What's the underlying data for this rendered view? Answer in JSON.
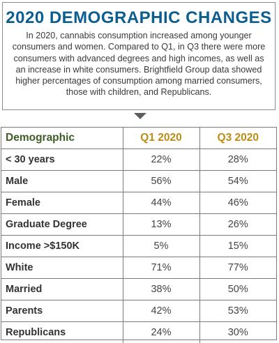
{
  "title": "2020 DEMOGRAPHIC CHANGES",
  "description": "In 2020, cannabis consumption increased among younger consumers and women. Compared to Q1, in Q3 there were more consumers with advanced degrees and high incomes, as well as an increase in white consumers. Brightfield Group data showed higher percentages of consumption among married consumers, those with children, and Republicans.",
  "colors": {
    "title": "#0d5e90",
    "header_demographic": "#3f5c27",
    "header_quarters": "#bf8c12"
  },
  "chart_data": {
    "type": "table",
    "columns": [
      "Demographic",
      "Q1 2020",
      "Q3 2020"
    ],
    "rows": [
      {
        "label": "< 30 years",
        "q1": "22%",
        "q3": "28%"
      },
      {
        "label": "Male",
        "q1": "56%",
        "q3": "54%"
      },
      {
        "label": "Female",
        "q1": "44%",
        "q3": "46%"
      },
      {
        "label": "Graduate Degree",
        "q1": "13%",
        "q3": "26%"
      },
      {
        "label": "Income >$150K",
        "q1": "5%",
        "q3": "15%"
      },
      {
        "label": "White",
        "q1": "71%",
        "q3": "77%"
      },
      {
        "label": "Married",
        "q1": "38%",
        "q3": "50%"
      },
      {
        "label": "Parents",
        "q1": "42%",
        "q3": "53%"
      },
      {
        "label": "Republicans",
        "q1": "24%",
        "q3": "30%"
      }
    ]
  }
}
